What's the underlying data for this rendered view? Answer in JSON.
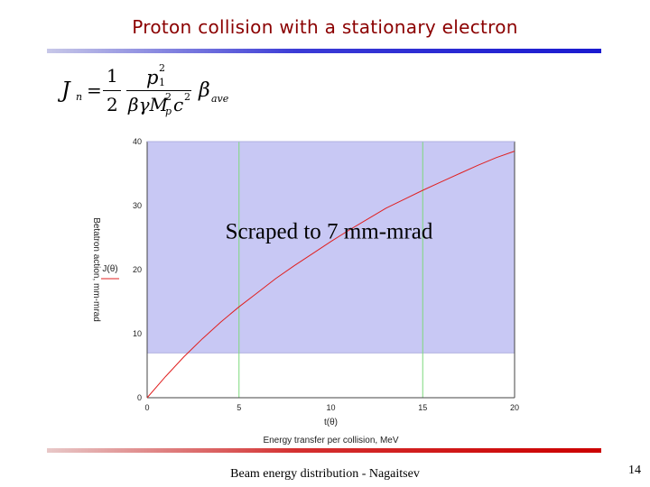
{
  "slide": {
    "title": "Proton collision with a stationary electron",
    "footer": "Beam energy distribution - Nagaitsev",
    "page_number": "14"
  },
  "formula": {
    "lhs": "J",
    "lhs_sub": "n",
    "one": "1",
    "two": "2",
    "num": "p",
    "num_sup": "2",
    "num_sub": "1",
    "den": "βγM",
    "den_sup": "2",
    "den_sub": "p",
    "den_tail": "c",
    "den_tail_sup": "2",
    "beta": "β",
    "beta_sub": "ave"
  },
  "colors": {
    "title": "#8b0000",
    "shade": "#c8c8f4",
    "curve": "#e02020",
    "grid": "#7dd87d",
    "rule_top": "#1a1ad0",
    "rule_bottom": "#cc0000"
  },
  "chart_data": {
    "type": "line",
    "xlabel": "Energy transfer per collision, MeV",
    "x_var_label": "t(θ)",
    "ylabel": "Betatron action, mm-mrad",
    "y_var_label": "J(θ)",
    "xlim": [
      0,
      20
    ],
    "ylim": [
      0,
      40
    ],
    "x_ticks": [
      0,
      5,
      10,
      15,
      20
    ],
    "y_ticks": [
      0,
      10,
      20,
      30,
      40
    ],
    "vertical_gridlines_at": [
      5,
      15
    ],
    "series": [
      {
        "x": [
          0,
          1,
          2,
          3,
          4,
          5,
          6,
          7,
          8,
          9,
          10,
          11,
          12,
          13,
          14,
          15,
          16,
          17,
          18,
          19,
          20
        ],
        "y": [
          0,
          3.3,
          6.4,
          9.2,
          11.8,
          14.2,
          16.4,
          18.6,
          20.6,
          22.5,
          24.4,
          26.2,
          27.9,
          29.6,
          31.0,
          32.4,
          33.7,
          35.0,
          36.3,
          37.5,
          38.5
        ]
      }
    ],
    "shaded_region": {
      "y_from": 7,
      "y_to": 40,
      "label": "Scraped to 7 mm-mrad"
    },
    "grid": "partial",
    "legend": "none"
  }
}
